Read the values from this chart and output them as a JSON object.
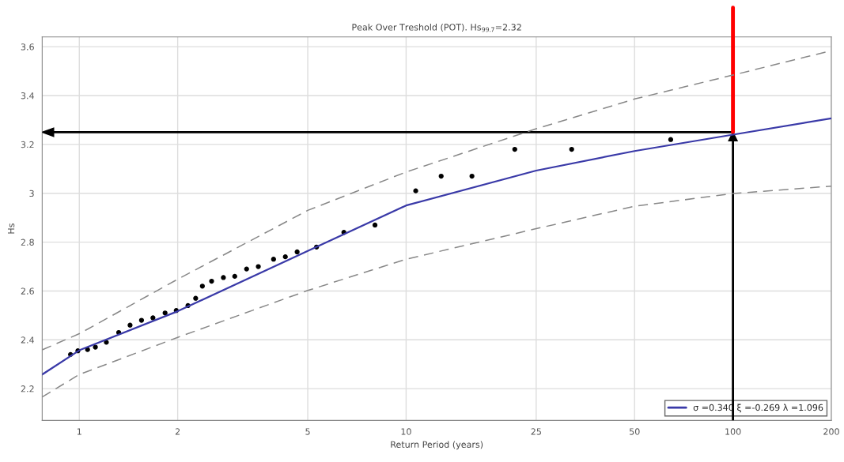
{
  "chart_data": {
    "type": "line",
    "title": "Peak Over Treshold (POT). Hs$_{99.7}$=2.32",
    "xlabel": "Return Period (years)",
    "ylabel": "Hs",
    "log": "x",
    "xlim": [
      0.77,
      200
    ],
    "xticks": [
      1,
      2,
      5,
      10,
      25,
      50,
      100,
      200
    ],
    "ylim": [
      2.07,
      3.64
    ],
    "yticks": [
      2.2,
      2.4,
      2.6,
      2.8,
      3,
      3.2,
      3.4,
      3.6
    ],
    "grid": true,
    "legend": "bottom right",
    "series": [
      {
        "name": "σ =0.340 ξ =-0.269 λ =1.096",
        "color": "#3a3aa8",
        "x": [
          0.77,
          1,
          2,
          5,
          10,
          25,
          50,
          100,
          200
        ],
        "values": [
          2.258,
          2.357,
          2.517,
          2.764,
          2.95,
          3.093,
          3.173,
          3.24,
          3.307
        ]
      },
      {
        "color": "#888888",
        "line_style": "dashed",
        "x": [
          0.77,
          1,
          2,
          5,
          10,
          25,
          50,
          100,
          200
        ],
        "values": [
          2.359,
          2.425,
          2.648,
          2.93,
          3.087,
          3.264,
          3.386,
          3.484,
          3.584
        ]
      },
      {
        "color": "#888888",
        "line_style": "dashed",
        "x": [
          0.77,
          1,
          2,
          5,
          10,
          25,
          50,
          100,
          200
        ],
        "values": [
          2.166,
          2.258,
          2.41,
          2.602,
          2.73,
          2.855,
          2.947,
          2.999,
          3.029
        ]
      },
      {
        "type": "scatter",
        "marker": "circle",
        "color": "#000000",
        "x": [
          0.94,
          0.99,
          1.06,
          1.12,
          1.21,
          1.32,
          1.43,
          1.55,
          1.68,
          1.83,
          1.98,
          2.15,
          2.27,
          2.38,
          2.54,
          2.76,
          2.99,
          3.25,
          3.53,
          3.93,
          4.27,
          4.64,
          5.32,
          6.45,
          8.03,
          10.7,
          12.8,
          15.9,
          21.5,
          32.1,
          64.5
        ],
        "values": [
          2.34,
          2.355,
          2.36,
          2.37,
          2.39,
          2.43,
          2.46,
          2.48,
          2.49,
          2.51,
          2.52,
          2.54,
          2.57,
          2.62,
          2.64,
          2.655,
          2.66,
          2.69,
          2.7,
          2.73,
          2.74,
          2.76,
          2.78,
          2.84,
          2.87,
          3.01,
          3.07,
          3.07,
          3.18,
          3.18,
          3.22
        ]
      }
    ],
    "ref_lines": [
      {
        "axis": "x",
        "value": 100,
        "color": "#000000"
      },
      {
        "axis": "y",
        "value": 3.25,
        "color": "#000000"
      },
      {
        "axis": "x",
        "value": 100,
        "color": "#ff0000"
      }
    ]
  }
}
